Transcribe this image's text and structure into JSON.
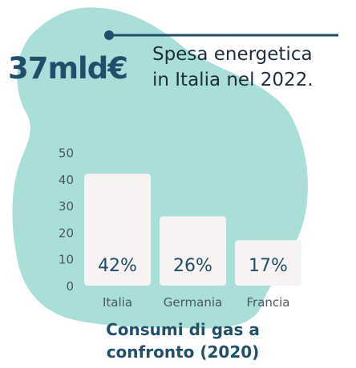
{
  "headline": {
    "value": "37mld€"
  },
  "description": {
    "line1": "Spesa energetica",
    "line2": "in Italia nel 2022."
  },
  "caption": {
    "line1": "Consumi di gas a",
    "line2": "confronto (2020)"
  },
  "colors": {
    "blob": "#a9ded9",
    "bar": "#f7f3f2",
    "accent": "#1f4f6b",
    "text": "#1f2d3a",
    "axis": "#4a5560"
  },
  "chart_data": {
    "type": "bar",
    "categories": [
      "Italia",
      "Germania",
      "Francia"
    ],
    "values": [
      42,
      26,
      17
    ],
    "data_labels": [
      "42%",
      "26%",
      "17%"
    ],
    "yticks": [
      0,
      10,
      20,
      30,
      40,
      50
    ],
    "ylim": [
      0,
      50
    ],
    "grid": false
  }
}
